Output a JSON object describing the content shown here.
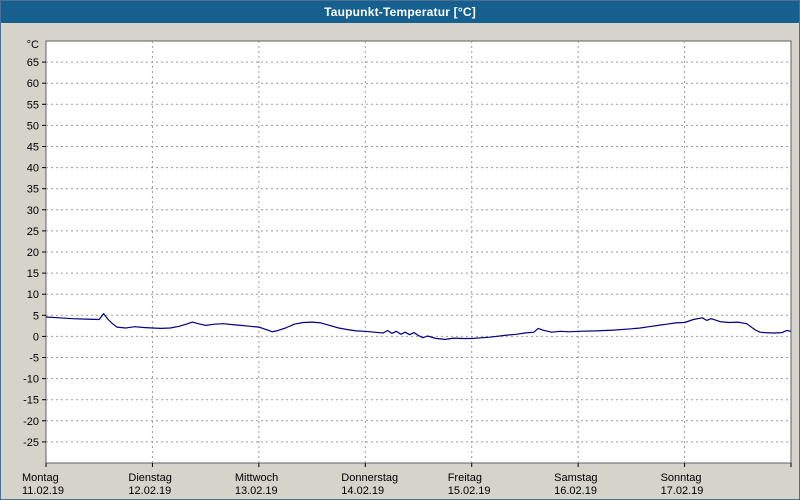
{
  "window": {
    "title": "Taupunkt-Temperatur [°C]"
  },
  "colors": {
    "titlebar": "#15608f",
    "background": "#d6d3cb",
    "plot_background": "#ffffff",
    "plot_border": "#606060",
    "grid": "#9a9a9a",
    "axis_text": "#000000",
    "line": "#000080"
  },
  "chart_data": {
    "type": "line",
    "title": "Taupunkt-Temperatur [°C]",
    "ylabel": "°C",
    "ylim": [
      -30,
      70
    ],
    "yticks": [
      -25,
      -20,
      -15,
      -10,
      -5,
      0,
      5,
      10,
      15,
      20,
      25,
      30,
      35,
      40,
      45,
      50,
      55,
      60,
      65
    ],
    "xlim_hours": [
      0,
      168
    ],
    "grid": "dashed",
    "legend": "none",
    "days": [
      {
        "name": "Montag",
        "date": "11.02.19"
      },
      {
        "name": "Dienstag",
        "date": "12.02.19"
      },
      {
        "name": "Mittwoch",
        "date": "13.02.19"
      },
      {
        "name": "Donnerstag",
        "date": "14.02.19"
      },
      {
        "name": "Freitag",
        "date": "15.02.19"
      },
      {
        "name": "Samstag",
        "date": "16.02.19"
      },
      {
        "name": "Sonntag",
        "date": "17.02.19"
      }
    ],
    "series": [
      {
        "name": "Taupunkt-Temperatur",
        "x_hours": [
          0,
          3,
          6,
          9,
          12,
          13,
          14,
          15,
          16,
          18,
          20,
          22,
          24,
          26,
          28,
          30,
          32,
          33,
          34,
          36,
          38,
          40,
          42,
          44,
          46,
          48,
          50,
          51,
          52,
          54,
          56,
          58,
          60,
          62,
          64,
          66,
          68,
          70,
          72,
          74,
          76,
          77,
          78,
          79,
          80,
          81,
          82,
          83,
          84,
          85,
          86,
          88,
          90,
          92,
          94,
          96,
          100,
          104,
          106,
          108,
          110,
          111,
          112,
          114,
          116,
          118,
          120,
          124,
          128,
          132,
          134,
          136,
          138,
          140,
          142,
          144,
          146,
          148,
          149,
          150,
          152,
          154,
          156,
          158,
          160,
          161,
          162,
          164,
          166,
          167,
          168
        ],
        "values": [
          4.6,
          4.4,
          4.2,
          4.1,
          4.0,
          5.4,
          4.0,
          3.0,
          2.2,
          2.0,
          2.3,
          2.1,
          2.0,
          1.9,
          2.0,
          2.4,
          3.0,
          3.4,
          3.1,
          2.6,
          2.9,
          3.0,
          2.8,
          2.6,
          2.4,
          2.2,
          1.5,
          1.1,
          1.3,
          2.0,
          2.9,
          3.3,
          3.4,
          3.2,
          2.6,
          2.0,
          1.6,
          1.3,
          1.2,
          1.0,
          0.8,
          1.4,
          0.7,
          1.2,
          0.5,
          1.0,
          0.4,
          0.9,
          0.2,
          -0.3,
          0.1,
          -0.5,
          -0.7,
          -0.4,
          -0.5,
          -0.5,
          -0.2,
          0.3,
          0.5,
          0.8,
          1.0,
          1.9,
          1.5,
          1.0,
          1.2,
          1.1,
          1.2,
          1.3,
          1.5,
          1.8,
          2.0,
          2.3,
          2.6,
          2.9,
          3.2,
          3.3,
          4.0,
          4.4,
          3.8,
          4.2,
          3.5,
          3.3,
          3.4,
          3.0,
          1.5,
          1.0,
          0.9,
          0.8,
          0.9,
          1.4,
          1.2
        ]
      }
    ]
  }
}
